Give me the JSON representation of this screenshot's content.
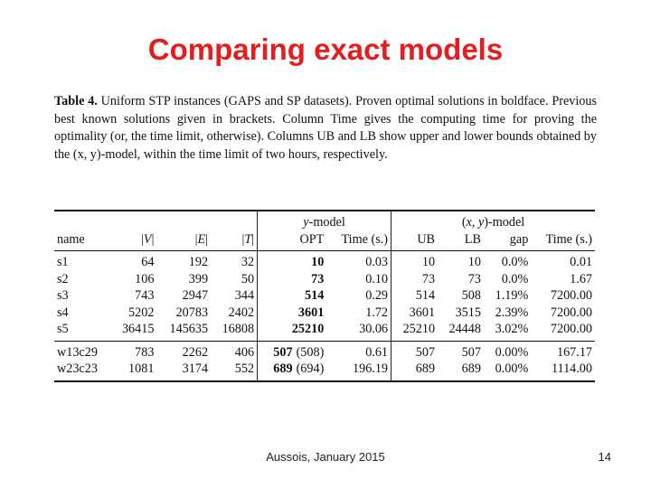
{
  "slide": {
    "title": "Comparing exact models",
    "footer": "Aussois, January 2015",
    "page_number": "14"
  },
  "caption": {
    "label": "Table 4.",
    "text": " Uniform STP instances (GAPS and SP datasets). Proven optimal solutions in boldface. Previous best known solutions given in brackets. Column Time gives the computing time for proving the optimality (or, the time limit, otherwise). Columns UB and LB show upper and lower bounds obtained by the (x, y)-model, within the time limit of two hours, respectively."
  },
  "table": {
    "group_y": "y-model",
    "group_xy": "(x, y)-model",
    "headers": [
      "name",
      "|V|",
      "|E|",
      "|T|",
      "OPT",
      "Time (s.)",
      "UB",
      "LB",
      "gap",
      "Time (s.)"
    ],
    "rows": [
      [
        "s1",
        "64",
        "192",
        "32",
        "10",
        "0.03",
        "10",
        "10",
        "0.0%",
        "0.01"
      ],
      [
        "s2",
        "106",
        "399",
        "50",
        "73",
        "0.10",
        "73",
        "73",
        "0.0%",
        "1.67"
      ],
      [
        "s3",
        "743",
        "2947",
        "344",
        "514",
        "0.29",
        "514",
        "508",
        "1.19%",
        "7200.00"
      ],
      [
        "s4",
        "5202",
        "20783",
        "2402",
        "3601",
        "1.72",
        "3601",
        "3515",
        "2.39%",
        "7200.00"
      ],
      [
        "s5",
        "36415",
        "145635",
        "16808",
        "25210",
        "30.06",
        "25210",
        "24448",
        "3.02%",
        "7200.00"
      ],
      [
        "w13c29",
        "783",
        "2262",
        "406",
        "507",
        "0.61",
        "507",
        "507",
        "0.00%",
        "167.17"
      ],
      [
        "w23c23",
        "1081",
        "3174",
        "552",
        "689",
        "196.19",
        "689",
        "689",
        "0.00%",
        "1114.00"
      ]
    ],
    "previous_best": [
      "(508)",
      "(694)"
    ]
  }
}
